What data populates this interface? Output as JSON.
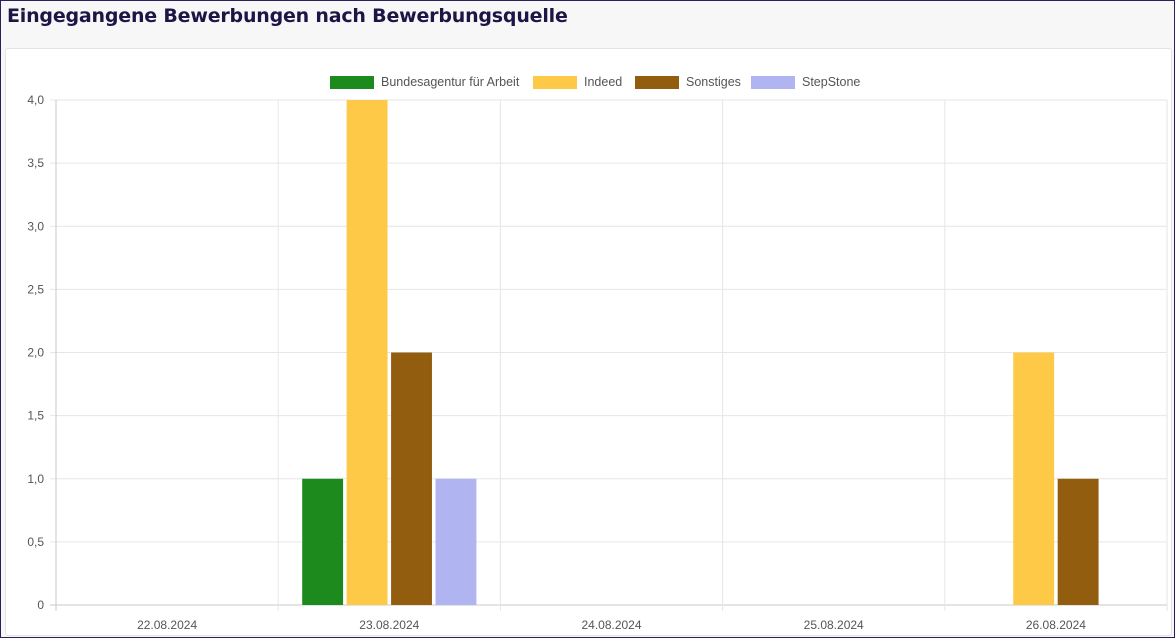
{
  "header": {
    "title": "Eingegangene Bewerbungen nach Bewerbungsquelle"
  },
  "chart_data": {
    "type": "bar",
    "title": "Eingegangene Bewerbungen nach Bewerbungsquelle",
    "xlabel": "",
    "ylabel": "",
    "ylim": [
      0,
      4
    ],
    "y_ticks": [
      "0",
      "0,5",
      "1,0",
      "1,5",
      "2,0",
      "2,5",
      "3,0",
      "3,5",
      "4,0"
    ],
    "grid": true,
    "legend_position": "top-center",
    "categories": [
      "22.08.2024",
      "23.08.2024",
      "24.08.2024",
      "25.08.2024",
      "26.08.2024"
    ],
    "series": [
      {
        "name": "Bundesagentur für Arbeit",
        "color": "#1c8a1c",
        "values": [
          0,
          1,
          0,
          0,
          0
        ]
      },
      {
        "name": "Indeed",
        "color": "#fec946",
        "values": [
          0,
          4,
          0,
          0,
          2
        ]
      },
      {
        "name": "Sonstiges",
        "color": "#935d10",
        "values": [
          0,
          2,
          0,
          0,
          1
        ]
      },
      {
        "name": "StepStone",
        "color": "#b0b4f0",
        "values": [
          0,
          1,
          0,
          0,
          0
        ]
      }
    ]
  }
}
